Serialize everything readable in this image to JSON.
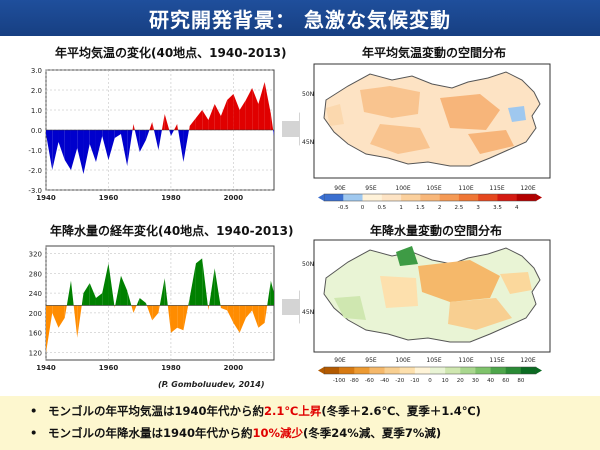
{
  "header": {
    "title": "研究開発背景： 急激な気候変動"
  },
  "panels": {
    "temp_series_title": "年平均気温の変化(40地点、1940-2013)",
    "temp_map_title": "年平均気温変動の空間分布",
    "precip_series_title": "年降水量の経年変化(40地点、1940-2013)",
    "precip_map_title": "年降水量変動の空間分布"
  },
  "map_labels": {
    "lon": [
      "90E",
      "95E",
      "100E",
      "105E",
      "110E",
      "115E",
      "120E"
    ],
    "lat": [
      "50N",
      "45N"
    ]
  },
  "temp_colorbar": {
    "ticks": [
      "-0.5",
      "0",
      "0.5",
      "1",
      "1.5",
      "2",
      "2.5",
      "3",
      "3.5",
      "4"
    ]
  },
  "precip_colorbar": {
    "ticks": [
      "-100",
      "-80",
      "-60",
      "-40",
      "-20",
      "-10",
      "0",
      "10",
      "20",
      "30",
      "40",
      "60",
      "80"
    ]
  },
  "credit": "(P. Gomboluudev, 2014)",
  "bullets": {
    "b1_pre": "モンゴルの年平均気温は1940年代から約",
    "b1_hl": "2.1℃上昇",
    "b1_post": "(冬季＋2.6℃、夏季＋1.4℃)",
    "b2_pre": "モンゴルの年降水量は1940年代から約",
    "b2_hl": "10%減少",
    "b2_post": "(冬季24%減、夏季7%減)"
  },
  "chart_data": [
    {
      "type": "area",
      "x_ticks": [
        "1940",
        "1960",
        "1980",
        "2000"
      ],
      "y_ticks": [
        "3.0",
        "2.0",
        "1.0",
        "0.0",
        "-1.0",
        "-2.0",
        "-3.0"
      ],
      "xlim": [
        1940,
        2013
      ],
      "ylim": [
        -3.0,
        3.0
      ],
      "baseline": 0,
      "colors": {
        "above": "#e00000",
        "below": "#0000cc"
      },
      "x": [
        1940,
        1942,
        1944,
        1946,
        1948,
        1950,
        1952,
        1954,
        1956,
        1958,
        1960,
        1962,
        1964,
        1966,
        1968,
        1970,
        1972,
        1974,
        1976,
        1978,
        1980,
        1982,
        1984,
        1986,
        1988,
        1990,
        1992,
        1994,
        1996,
        1998,
        2000,
        2002,
        2004,
        2006,
        2008,
        2010,
        2012,
        2013
      ],
      "values": [
        -0.2,
        -2.0,
        -0.6,
        -1.5,
        -2.0,
        -0.9,
        -2.2,
        -0.7,
        -1.6,
        -0.3,
        -1.5,
        -0.4,
        -0.2,
        -1.8,
        0.3,
        -1.1,
        -0.5,
        0.4,
        -1.0,
        0.8,
        -0.3,
        0.3,
        -1.6,
        0.2,
        0.6,
        1.0,
        0.5,
        1.3,
        0.7,
        1.5,
        1.8,
        1.0,
        1.5,
        2.1,
        1.3,
        2.4,
        0.8,
        -0.3
      ]
    },
    {
      "type": "area",
      "x_ticks": [
        "1940",
        "1960",
        "1980",
        "2000"
      ],
      "y_ticks": [
        "320",
        "280",
        "240",
        "200",
        "160",
        "120"
      ],
      "xlim": [
        1940,
        2013
      ],
      "ylim": [
        105,
        335
      ],
      "baseline": 215,
      "colors": {
        "above": "#008000",
        "below": "#ff8c00"
      },
      "x": [
        1940,
        1942,
        1944,
        1946,
        1948,
        1950,
        1952,
        1954,
        1956,
        1958,
        1960,
        1962,
        1964,
        1966,
        1968,
        1970,
        1972,
        1974,
        1976,
        1978,
        1980,
        1982,
        1984,
        1986,
        1988,
        1990,
        1992,
        1994,
        1996,
        1998,
        2000,
        2002,
        2004,
        2006,
        2008,
        2010,
        2012,
        2013
      ],
      "values": [
        120,
        200,
        170,
        190,
        265,
        150,
        240,
        260,
        230,
        240,
        300,
        210,
        275,
        245,
        200,
        230,
        220,
        185,
        200,
        270,
        160,
        170,
        165,
        230,
        300,
        310,
        205,
        290,
        210,
        205,
        180,
        160,
        190,
        205,
        170,
        180,
        265,
        240
      ]
    }
  ]
}
